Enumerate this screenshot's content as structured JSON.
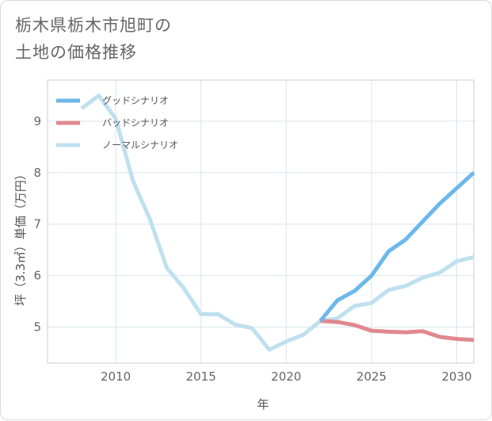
{
  "title": {
    "line1": "栃木県栃木市旭町の",
    "line2": "土地の価格推移"
  },
  "chart_data": {
    "type": "line",
    "xlabel": "年",
    "ylabel": "坪（3.3㎡）単価（万円）",
    "xlim": [
      2006,
      2031
    ],
    "ylim": [
      4.3,
      9.8
    ],
    "xticks": [
      2010,
      2015,
      2020,
      2025,
      2030
    ],
    "yticks": [
      5,
      6,
      7,
      8,
      9
    ],
    "grid": true,
    "legend_position": "top-left",
    "series": [
      {
        "name": "グッドシナリオ",
        "color": "#6cb8ea",
        "x": [
          2022,
          2023,
          2024,
          2025,
          2026,
          2027,
          2028,
          2029,
          2030,
          2031
        ],
        "y": [
          5.12,
          5.52,
          5.7,
          6.0,
          6.47,
          6.7,
          7.05,
          7.4,
          7.7,
          8.0
        ]
      },
      {
        "name": "バッドシナリオ",
        "color": "#e0888f",
        "x": [
          2022,
          2023,
          2024,
          2025,
          2026,
          2027,
          2028,
          2029,
          2030,
          2031
        ],
        "y": [
          5.12,
          5.1,
          5.04,
          4.93,
          4.91,
          4.9,
          4.92,
          4.81,
          4.77,
          4.75
        ]
      },
      {
        "name": "ノーマルシナリオ",
        "color": "#bfe0ee",
        "x": [
          2008,
          2009,
          2010,
          2011,
          2012,
          2013,
          2014,
          2015,
          2016,
          2017,
          2018,
          2019,
          2020,
          2021,
          2022,
          2023,
          2024,
          2025,
          2026,
          2027,
          2028,
          2029,
          2030,
          2031
        ],
        "y": [
          9.25,
          9.5,
          9.05,
          7.85,
          7.1,
          6.15,
          5.75,
          5.25,
          5.25,
          5.05,
          4.98,
          4.56,
          4.72,
          4.85,
          5.12,
          5.17,
          5.41,
          5.47,
          5.72,
          5.8,
          5.96,
          6.06,
          6.28,
          6.36
        ]
      }
    ]
  }
}
